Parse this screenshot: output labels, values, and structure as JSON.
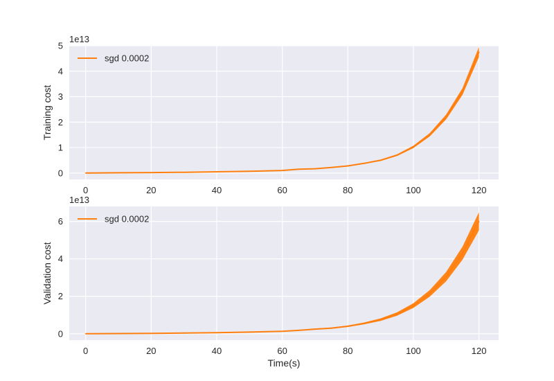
{
  "chart_data": [
    {
      "type": "line",
      "ylabel": "Training cost",
      "xlabel": "",
      "offset_text": "1e13",
      "xlim": [
        -5,
        126
      ],
      "ylim": [
        -0.25,
        5.0
      ],
      "xticks": [
        "0",
        "20",
        "40",
        "60",
        "80",
        "100",
        "120"
      ],
      "yticks": [
        "0",
        "1",
        "2",
        "3",
        "4",
        "5"
      ],
      "grid": true,
      "legend_position": "upper-left",
      "series": [
        {
          "name": "sgd 0.0002",
          "color": "#ff7f0e",
          "x": [
            0,
            10,
            20,
            30,
            40,
            50,
            60,
            65,
            70,
            75,
            80,
            85,
            90,
            95,
            100,
            105,
            110,
            115,
            120
          ],
          "y": [
            0.0,
            0.01,
            0.02,
            0.03,
            0.05,
            0.07,
            0.1,
            0.15,
            0.17,
            0.22,
            0.28,
            0.38,
            0.5,
            0.7,
            1.02,
            1.5,
            2.2,
            3.2,
            4.75
          ],
          "band": 0.04
        }
      ]
    },
    {
      "type": "line",
      "ylabel": "Validation cost",
      "xlabel": "Time(s)",
      "offset_text": "1e13",
      "xlim": [
        -5,
        126
      ],
      "ylim": [
        -0.34,
        6.8
      ],
      "xticks": [
        "0",
        "20",
        "40",
        "60",
        "80",
        "100",
        "120"
      ],
      "yticks": [
        "0",
        "2",
        "4",
        "6"
      ],
      "grid": true,
      "legend_position": "upper-left",
      "series": [
        {
          "name": "sgd 0.0002",
          "color": "#ff7f0e",
          "x": [
            0,
            10,
            20,
            30,
            40,
            50,
            60,
            65,
            70,
            75,
            80,
            85,
            90,
            95,
            100,
            105,
            110,
            115,
            120
          ],
          "y": [
            0.0,
            0.01,
            0.02,
            0.04,
            0.06,
            0.09,
            0.13,
            0.18,
            0.25,
            0.3,
            0.4,
            0.55,
            0.75,
            1.05,
            1.5,
            2.15,
            3.05,
            4.3,
            6.0
          ],
          "band": 0.08
        }
      ]
    }
  ]
}
